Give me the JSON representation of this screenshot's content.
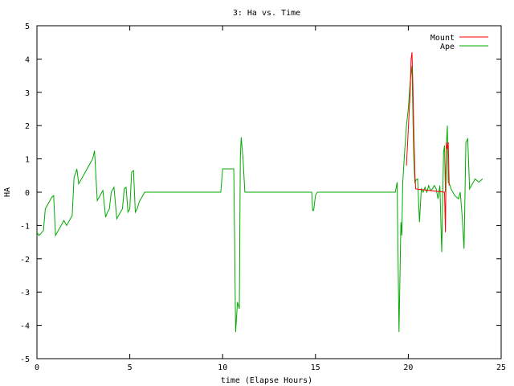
{
  "chart_data": {
    "type": "line",
    "title": "3: Ha vs. Time",
    "xlabel": "time (Elapse Hours)",
    "ylabel": "HA",
    "xlim": [
      0,
      25
    ],
    "ylim": [
      -5,
      5
    ],
    "xticks": [
      0,
      5,
      10,
      15,
      20,
      25
    ],
    "yticks": [
      -5,
      -4,
      -3,
      -2,
      -1,
      0,
      1,
      2,
      3,
      4,
      5
    ],
    "grid": false,
    "legend_position": "top-right",
    "series": [
      {
        "name": "Mount",
        "color": "#ff0000",
        "x": [
          19.9,
          20.0,
          20.1,
          20.15,
          20.2,
          20.25,
          20.3,
          20.35,
          20.4,
          21.95,
          22.0,
          22.05,
          22.1,
          22.15,
          22.2
        ],
        "y": [
          0.8,
          1.9,
          3.0,
          4.0,
          4.2,
          3.1,
          1.8,
          0.6,
          0.1,
          0.0,
          -1.2,
          1.5,
          1.3,
          1.5,
          0.2
        ]
      },
      {
        "name": "Ape",
        "color": "#00aa00",
        "x": [
          0.0,
          0.1,
          0.2,
          0.35,
          0.45,
          0.55,
          0.65,
          0.8,
          0.9,
          1.0,
          1.1,
          1.3,
          1.45,
          1.6,
          1.8,
          1.9,
          2.0,
          2.1,
          2.15,
          2.25,
          2.4,
          2.6,
          2.8,
          3.0,
          3.1,
          3.25,
          3.4,
          3.55,
          3.7,
          3.8,
          3.9,
          4.0,
          4.15,
          4.3,
          4.4,
          4.5,
          4.6,
          4.7,
          4.8,
          4.9,
          5.0,
          5.1,
          5.2,
          5.3,
          5.4,
          5.5,
          5.6,
          5.8,
          6.0,
          9.9,
          10.0,
          10.2,
          10.4,
          10.6,
          10.7,
          10.8,
          10.9,
          10.95,
          11.0,
          11.1,
          11.2,
          11.3,
          11.35,
          11.45,
          14.8,
          14.85,
          14.9,
          15.0,
          15.1,
          19.3,
          19.4,
          19.5,
          19.6,
          19.65,
          19.7,
          19.8,
          19.9,
          20.0,
          20.1,
          20.2,
          20.25,
          20.3,
          20.35,
          20.4,
          20.5,
          20.6,
          20.7,
          20.8,
          20.9,
          21.0,
          21.1,
          21.2,
          21.3,
          21.4,
          21.5,
          21.6,
          21.7,
          21.8,
          21.9,
          21.95,
          22.0,
          22.05,
          22.1,
          22.15,
          22.2,
          22.25,
          22.3,
          22.5,
          22.7,
          22.8,
          22.9,
          23.0,
          23.1,
          23.2,
          23.3,
          23.4,
          23.5,
          23.6,
          23.7,
          23.8,
          23.9,
          24.0
        ],
        "y": [
          -1.2,
          -1.3,
          -1.25,
          -1.15,
          -0.5,
          -0.4,
          -0.3,
          -0.15,
          -0.1,
          -1.3,
          -1.2,
          -1.0,
          -0.85,
          -1.0,
          -0.8,
          -0.7,
          0.45,
          0.6,
          0.7,
          0.25,
          0.4,
          0.6,
          0.8,
          1.0,
          1.25,
          -0.25,
          -0.1,
          0.05,
          -0.75,
          -0.6,
          -0.5,
          0.0,
          0.15,
          -0.8,
          -0.7,
          -0.6,
          -0.5,
          0.1,
          0.15,
          -0.6,
          -0.5,
          0.6,
          0.65,
          -0.6,
          -0.5,
          -0.3,
          -0.2,
          0.0,
          0.0,
          0.0,
          0.7,
          0.7,
          0.7,
          0.7,
          -4.2,
          -3.3,
          -3.5,
          1.0,
          1.65,
          1.0,
          0.0,
          0.0,
          0.0,
          0.0,
          0.0,
          -0.55,
          -0.55,
          -0.1,
          0.0,
          0.0,
          0.3,
          -4.2,
          -0.9,
          -1.3,
          0.3,
          1.2,
          2.0,
          2.5,
          3.3,
          3.8,
          2.2,
          1.0,
          0.3,
          0.35,
          0.4,
          -0.9,
          0.1,
          0.0,
          0.15,
          0.0,
          0.2,
          0.05,
          0.1,
          0.2,
          0.1,
          -0.2,
          0.2,
          -1.8,
          1.2,
          1.4,
          0.0,
          1.4,
          2.0,
          0.3,
          0.25,
          0.2,
          0.1,
          -0.1,
          -0.2,
          0.0,
          -0.7,
          -1.7,
          1.5,
          1.6,
          0.1,
          0.2,
          0.3,
          0.4,
          0.35,
          0.3,
          0.35,
          0.4
        ]
      }
    ]
  }
}
